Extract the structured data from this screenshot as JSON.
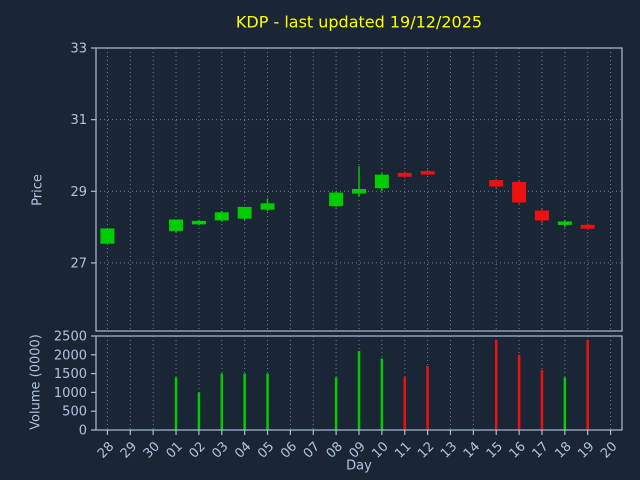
{
  "chart_data": {
    "type": "candlestick",
    "title": "KDP - last updated 19/12/2025",
    "xlabel": "Day",
    "price_ylabel": "Price",
    "volume_ylabel": "Volume (0000)",
    "price_ylim": [
      25.1,
      33.0
    ],
    "price_yticks": [
      27,
      29,
      31,
      33
    ],
    "volume_ylim": [
      0,
      2500
    ],
    "volume_yticks": [
      0,
      500,
      1000,
      1500,
      2000,
      2500
    ],
    "x_ticklabels": [
      "28",
      "29",
      "30",
      "01",
      "02",
      "03",
      "04",
      "05",
      "06",
      "07",
      "08",
      "09",
      "10",
      "11",
      "12",
      "13",
      "14",
      "15",
      "16",
      "17",
      "18",
      "19",
      "20"
    ],
    "colors": {
      "up": "#00cc00",
      "down": "#ee1111",
      "background": "#1a2535",
      "frame": "#a9bed6",
      "text": "#b0c4de",
      "title": "#ffff00",
      "grid": "#8fa3b8"
    },
    "candles": [
      {
        "x": "28",
        "open": 27.55,
        "high": 27.95,
        "low": 27.55,
        "close": 27.95,
        "volume": 0
      },
      {
        "x": "01",
        "open": 27.9,
        "high": 28.2,
        "low": 27.85,
        "close": 28.2,
        "volume": 1400
      },
      {
        "x": "02",
        "open": 28.1,
        "high": 28.2,
        "low": 28.05,
        "close": 28.15,
        "volume": 1000
      },
      {
        "x": "03",
        "open": 28.2,
        "high": 28.45,
        "low": 28.15,
        "close": 28.4,
        "volume": 1500
      },
      {
        "x": "04",
        "open": 28.25,
        "high": 28.55,
        "low": 28.2,
        "close": 28.55,
        "volume": 1500
      },
      {
        "x": "05",
        "open": 28.5,
        "high": 28.8,
        "low": 28.45,
        "close": 28.65,
        "volume": 1500
      },
      {
        "x": "08",
        "open": 28.6,
        "high": 29.0,
        "low": 28.55,
        "close": 28.95,
        "volume": 1400
      },
      {
        "x": "09",
        "open": 28.95,
        "high": 29.7,
        "low": 28.85,
        "close": 29.05,
        "volume": 2100
      },
      {
        "x": "10",
        "open": 29.1,
        "high": 29.5,
        "low": 29.0,
        "close": 29.45,
        "volume": 1900
      },
      {
        "x": "11",
        "open": 29.5,
        "high": 29.55,
        "low": 29.38,
        "close": 29.42,
        "volume": 1400
      },
      {
        "x": "12",
        "open": 29.55,
        "high": 29.6,
        "low": 29.45,
        "close": 29.48,
        "volume": 1700
      },
      {
        "x": "15",
        "open": 29.3,
        "high": 29.35,
        "low": 29.1,
        "close": 29.15,
        "volume": 2400
      },
      {
        "x": "16",
        "open": 29.25,
        "high": 29.3,
        "low": 28.65,
        "close": 28.7,
        "volume": 2000
      },
      {
        "x": "17",
        "open": 28.45,
        "high": 28.5,
        "low": 28.1,
        "close": 28.2,
        "volume": 1600
      },
      {
        "x": "18",
        "open": 28.08,
        "high": 28.2,
        "low": 28.0,
        "close": 28.14,
        "volume": 1400
      },
      {
        "x": "19",
        "open": 28.05,
        "high": 28.1,
        "low": 27.93,
        "close": 27.97,
        "volume": 2400
      }
    ]
  }
}
